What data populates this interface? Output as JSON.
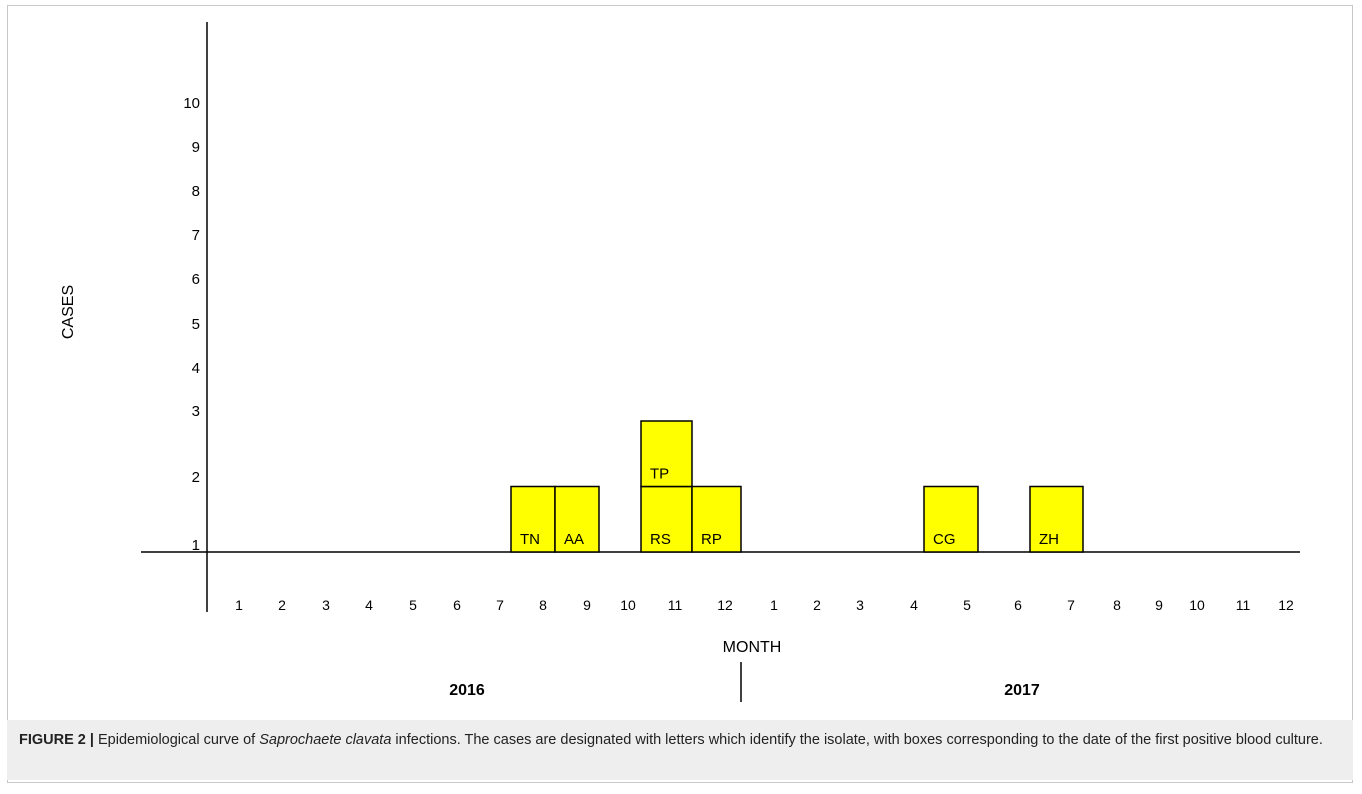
{
  "chart_data": {
    "type": "bar",
    "ylabel": "CASES",
    "xlabel": "MONTH",
    "y_ticks": [
      "1",
      "2",
      "3",
      "4",
      "5",
      "6",
      "7",
      "8",
      "9",
      "10"
    ],
    "x_ticks": [
      "1",
      "2",
      "3",
      "4",
      "5",
      "6",
      "7",
      "8",
      "9",
      "10",
      "11",
      "12",
      "1",
      "2",
      "3",
      "4",
      "5",
      "6",
      "7",
      "8",
      "9",
      "10",
      "11",
      "12"
    ],
    "years": [
      "2016",
      "2017"
    ],
    "cases": [
      {
        "label": "TN",
        "year": "2016",
        "month": 8,
        "count": 1
      },
      {
        "label": "AA",
        "year": "2016",
        "month": 9,
        "count": 1
      },
      {
        "label": "RS",
        "year": "2016",
        "month": 11,
        "count": 1
      },
      {
        "label": "TP",
        "year": "2016",
        "month": 11,
        "count": 1
      },
      {
        "label": "RP",
        "year": "2016",
        "month": 12,
        "count": 1
      },
      {
        "label": "CG",
        "year": "2017",
        "month": 5,
        "count": 1
      },
      {
        "label": "ZH",
        "year": "2017",
        "month": 7,
        "count": 1
      }
    ],
    "colors": {
      "box_fill": "#ffff00",
      "box_stroke": "#000000"
    },
    "grid": false
  },
  "caption": {
    "label": "FIGURE 2 |",
    "text_before": " Epidemiological curve of ",
    "italic": "Saprochaete clavata",
    "text_after": " infections. The cases are designated with letters which identify the isolate, with boxes corresponding to the date of the first positive blood culture."
  }
}
